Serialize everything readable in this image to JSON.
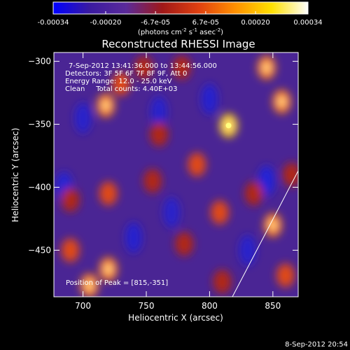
{
  "chart_data": {
    "type": "heatmap",
    "title": "Reconstructed RHESSI Image",
    "xlabel": "Heliocentric X (arcsec)",
    "ylabel": "Heliocentric Y (arcsec)",
    "xlim": [
      677,
      870
    ],
    "ylim": [
      -487,
      -293
    ],
    "x_ticks": [
      700,
      750,
      800,
      850
    ],
    "y_ticks": [
      -300,
      -350,
      -400,
      -450
    ],
    "colorbar": {
      "ticks": [
        {
          "value": -0.00034,
          "label": "-0.00034"
        },
        {
          "value": -0.0002,
          "label": "-0.00020"
        },
        {
          "value": -6.7e-05,
          "label": "-6.7e-05"
        },
        {
          "value": 6.7e-05,
          "label": "6.7e-05"
        },
        {
          "value": 0.0002,
          "label": "0.00020"
        },
        {
          "value": 0.00034,
          "label": "0.00034"
        }
      ],
      "range": [
        -0.00034,
        0.00034
      ],
      "colors": [
        "#0000ff",
        "#3a1aa0",
        "#5a2a9a",
        "#a01818",
        "#e04010",
        "#ff9000",
        "#ffe000",
        "#ffffff"
      ]
    },
    "info": {
      "time_range": "7-Sep-2012 13:41:36.000 to 13:44:56.000",
      "detectors": "Detectors: 3F 5F 6F 7F 8F 9F, Att 0",
      "energy": "Energy Range: 12.0 - 25.0 keV",
      "clean": "Clean     Total counts: 4.40E+03"
    },
    "peak_label": "Position of Peak = [815,-351]",
    "peak": [
      815,
      -351
    ],
    "limb_line": [
      [
        818,
        -487
      ],
      [
        870,
        -387
      ]
    ],
    "hot_spots": [
      {
        "x": 718,
        "y": -335,
        "v": 0.9
      },
      {
        "x": 730,
        "y": -318,
        "v": 0.8
      },
      {
        "x": 748,
        "y": -305,
        "v": 0.7
      },
      {
        "x": 778,
        "y": -305,
        "v": 0.6
      },
      {
        "x": 845,
        "y": -305,
        "v": 0.9
      },
      {
        "x": 857,
        "y": -332,
        "v": 0.95
      },
      {
        "x": 815,
        "y": -351,
        "v": 1.0
      },
      {
        "x": 760,
        "y": -358,
        "v": 0.6
      },
      {
        "x": 790,
        "y": -382,
        "v": 0.8
      },
      {
        "x": 755,
        "y": -395,
        "v": 0.7
      },
      {
        "x": 720,
        "y": -405,
        "v": 0.8
      },
      {
        "x": 690,
        "y": -410,
        "v": 0.7
      },
      {
        "x": 690,
        "y": -450,
        "v": 0.85
      },
      {
        "x": 720,
        "y": -465,
        "v": 0.9
      },
      {
        "x": 705,
        "y": -478,
        "v": 0.9
      },
      {
        "x": 808,
        "y": -420,
        "v": 0.75
      },
      {
        "x": 850,
        "y": -430,
        "v": 0.95
      },
      {
        "x": 835,
        "y": -405,
        "v": 0.6
      },
      {
        "x": 865,
        "y": -390,
        "v": 0.7
      },
      {
        "x": 860,
        "y": -470,
        "v": 0.75
      },
      {
        "x": 780,
        "y": -445,
        "v": 0.55
      },
      {
        "x": 810,
        "y": -475,
        "v": 0.5
      }
    ],
    "cold_spots": [
      {
        "x": 845,
        "y": -395,
        "v": 1.0
      },
      {
        "x": 685,
        "y": -400,
        "v": 0.85
      },
      {
        "x": 740,
        "y": -440,
        "v": 0.7
      },
      {
        "x": 800,
        "y": -330,
        "v": 0.7
      },
      {
        "x": 760,
        "y": -340,
        "v": 0.6
      },
      {
        "x": 830,
        "y": -450,
        "v": 0.6
      },
      {
        "x": 700,
        "y": -345,
        "v": 0.6
      },
      {
        "x": 770,
        "y": -420,
        "v": 0.55
      }
    ]
  },
  "footer": {
    "timestamp": "8-Sep-2012 20:54"
  }
}
